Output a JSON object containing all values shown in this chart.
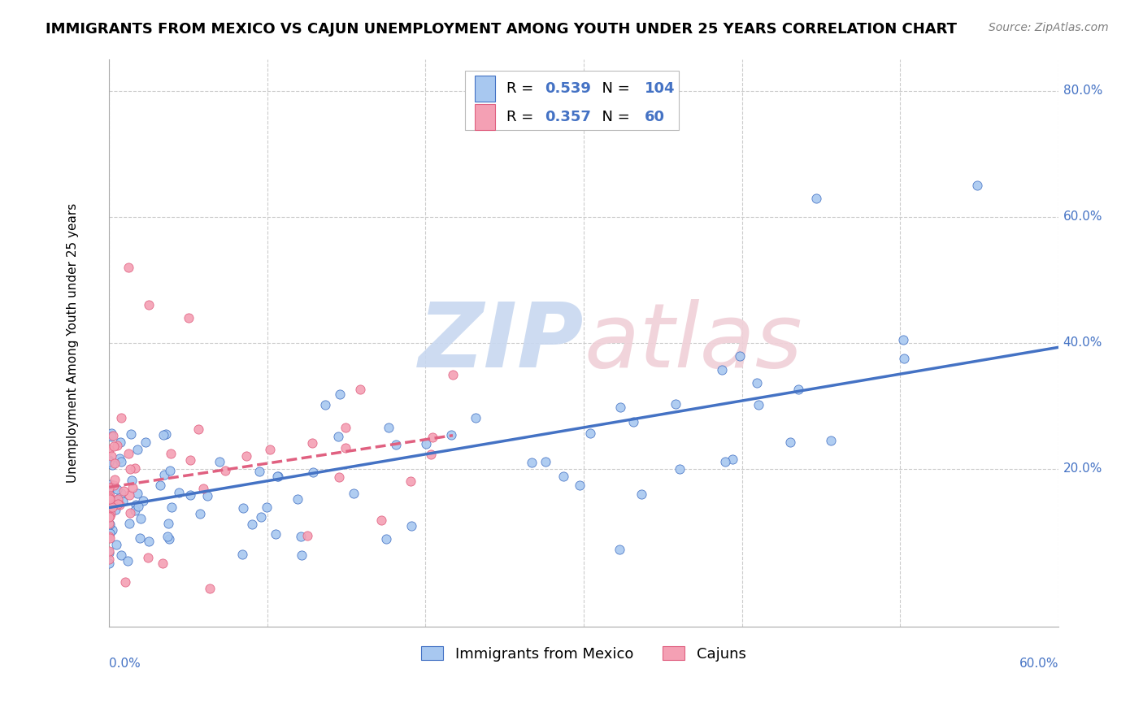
{
  "title": "IMMIGRANTS FROM MEXICO VS CAJUN UNEMPLOYMENT AMONG YOUTH UNDER 25 YEARS CORRELATION CHART",
  "source": "Source: ZipAtlas.com",
  "xlabel_bottom_left": "0.0%",
  "xlabel_bottom_right": "60.0%",
  "ylabel": "Unemployment Among Youth under 25 years",
  "legend_label_blue": "Immigrants from Mexico",
  "legend_label_pink": "Cajuns",
  "xlim": [
    0.0,
    0.6
  ],
  "ylim": [
    -0.05,
    0.85
  ],
  "ytick_vals": [
    0.2,
    0.4,
    0.6,
    0.8
  ],
  "ytick_labels": [
    "20.0%",
    "40.0%",
    "60.0%",
    "80.0%"
  ],
  "xtick_vals": [
    0.0,
    0.1,
    0.2,
    0.3,
    0.4,
    0.5,
    0.6
  ],
  "blue_R": 0.539,
  "blue_N": 104,
  "pink_R": 0.357,
  "pink_N": 60,
  "blue_scatter_color": "#a8c8f0",
  "blue_edge_color": "#4472c4",
  "pink_scatter_color": "#f4a0b4",
  "pink_edge_color": "#e06080",
  "blue_line_color": "#4472c4",
  "pink_line_color": "#e06080",
  "watermark_zip_color": "#c8d8f0",
  "watermark_atlas_color": "#f0d0d8",
  "grid_color": "#cccccc",
  "axis_color": "#aaaaaa",
  "tick_label_color": "#4472c4",
  "title_fontsize": 13,
  "source_fontsize": 10,
  "tick_fontsize": 11,
  "ylabel_fontsize": 11,
  "legend_fontsize": 13,
  "watermark_fontsize": 80
}
